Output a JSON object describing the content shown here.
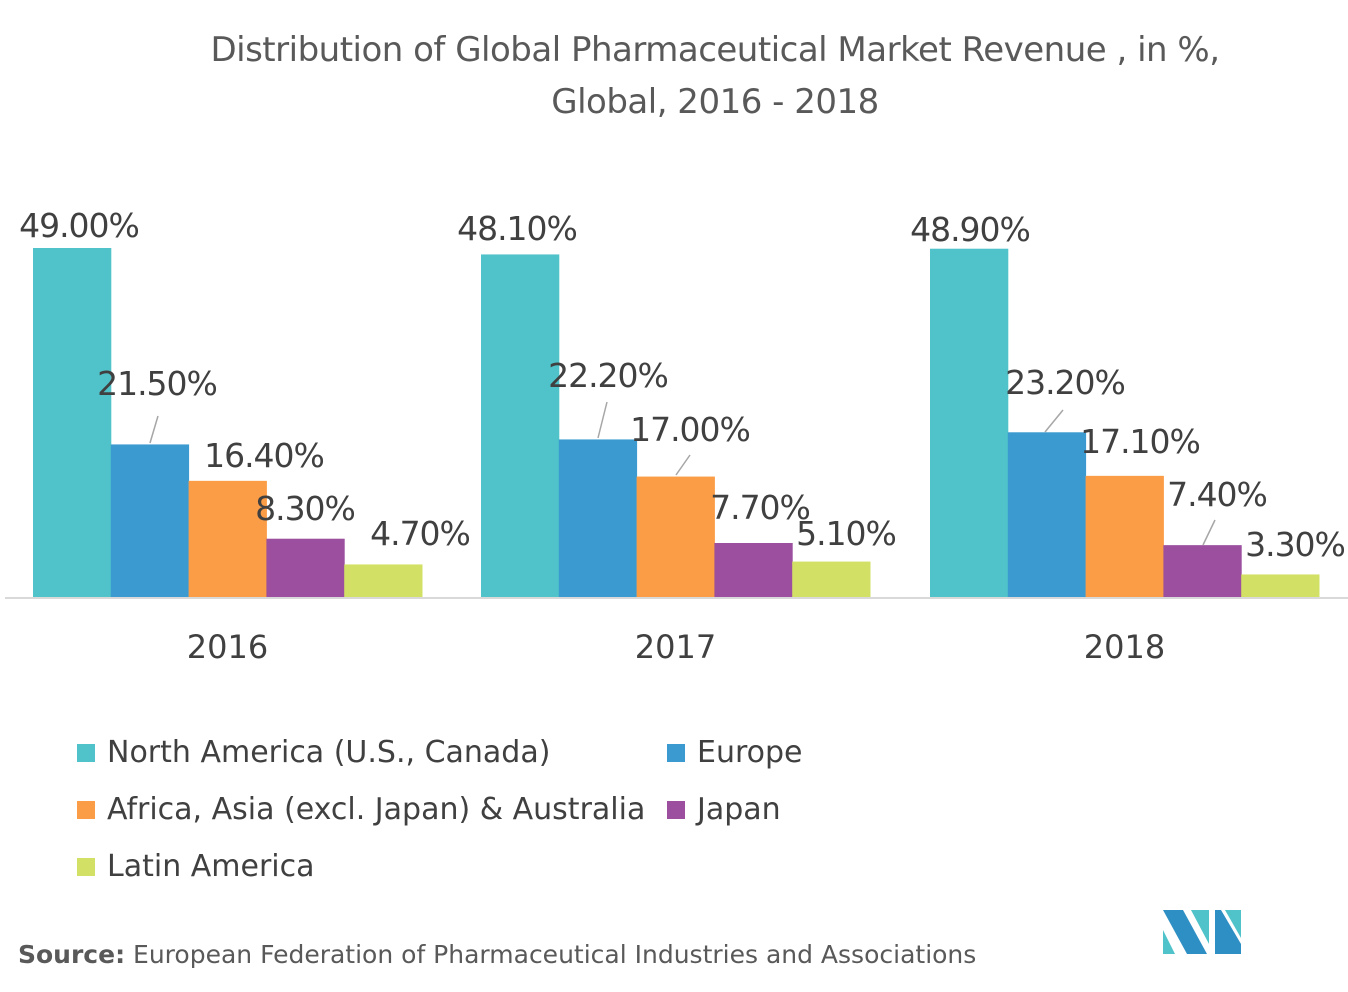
{
  "chart_data": {
    "type": "bar",
    "title": "Distribution of Global Pharmaceutical Market Revenue , in %, Global, 2016 - 2018",
    "title_lines": [
      "Distribution of Global Pharmaceutical Market Revenue , in %,",
      "Global, 2016 - 2018"
    ],
    "categories": [
      "2016",
      "2017",
      "2018"
    ],
    "series": [
      {
        "name": "North America (U.S., Canada)",
        "color": "#4fc3c9",
        "values": [
          49.0,
          48.1,
          48.9
        ],
        "labels": [
          "49.00%",
          "48.10%",
          "48.90%"
        ]
      },
      {
        "name": "Europe",
        "color": "#3b9bd0",
        "values": [
          21.5,
          22.2,
          23.2
        ],
        "labels": [
          "21.50%",
          "22.20%",
          "23.20%"
        ]
      },
      {
        "name": "Africa, Asia (excl. Japan) & Australia",
        "color": "#fb9d47",
        "values": [
          16.4,
          17.0,
          17.1
        ],
        "labels": [
          "16.40%",
          "17.00%",
          "17.10%"
        ]
      },
      {
        "name": "Japan",
        "color": "#9b4f9e",
        "values": [
          8.3,
          7.7,
          7.4
        ],
        "labels": [
          "8.30%",
          "7.70%",
          "7.40%"
        ]
      },
      {
        "name": "Latin America",
        "color": "#d2e066",
        "values": [
          4.7,
          5.1,
          3.3
        ],
        "labels": [
          "4.70%",
          "5.10%",
          "3.30%"
        ]
      }
    ],
    "ylim": [
      0,
      50
    ],
    "grid": false,
    "legend_position": "bottom"
  },
  "source": {
    "label": "Source:",
    "text": " European Federation of Pharmaceutical Industries and Associations"
  }
}
